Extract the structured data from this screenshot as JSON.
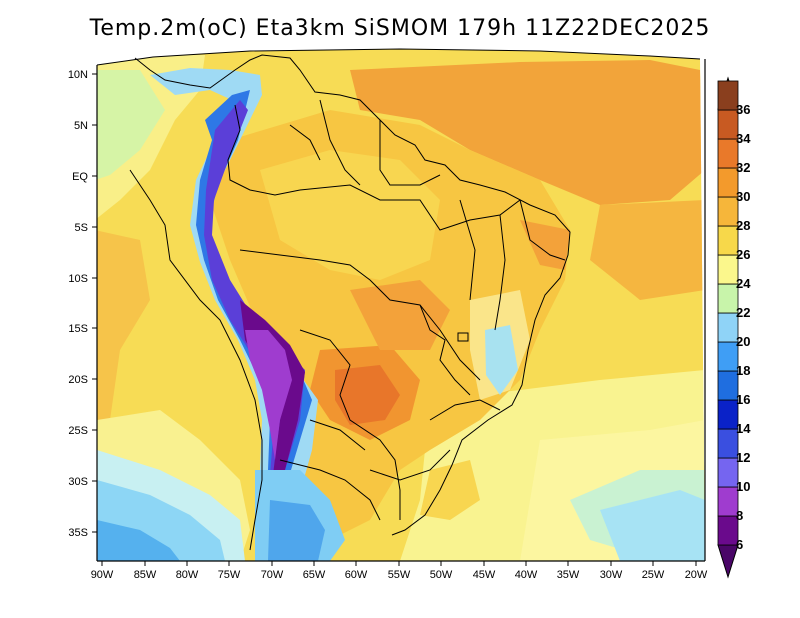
{
  "title": "Temp.2m(oC) Eta3km SiSMOM 179h 11Z22DEC2025",
  "map": {
    "region": "South America",
    "variable": "2 m temperature",
    "units": "oC",
    "lat_labels": [
      "10N",
      "5N",
      "EQ",
      "5S",
      "10S",
      "15S",
      "20S",
      "25S",
      "30S",
      "35S"
    ],
    "lon_labels": [
      "90W",
      "85W",
      "80W",
      "75W",
      "70W",
      "65W",
      "60W",
      "55W",
      "50W",
      "45W",
      "40W",
      "35W",
      "30W",
      "25W",
      "20W"
    ]
  },
  "colorbar": {
    "labels": [
      "6",
      "8",
      "10",
      "12",
      "14",
      "16",
      "18",
      "20",
      "22",
      "24",
      "26",
      "28",
      "30",
      "32",
      "34",
      "36"
    ],
    "colors": [
      "#6a0a8c",
      "#9f3ccf",
      "#7565f0",
      "#3a4fe0",
      "#0a22c8",
      "#1f6ee0",
      "#3f9ef5",
      "#8fd3f7",
      "#c8f4aa",
      "#fbf78c",
      "#f7d84a",
      "#f6b63a",
      "#f39a2c",
      "#e9792a",
      "#c85a22",
      "#8a3f1e"
    ],
    "low_arrow_color": "#4a0668",
    "high_arrow_color": "#5a2812"
  }
}
